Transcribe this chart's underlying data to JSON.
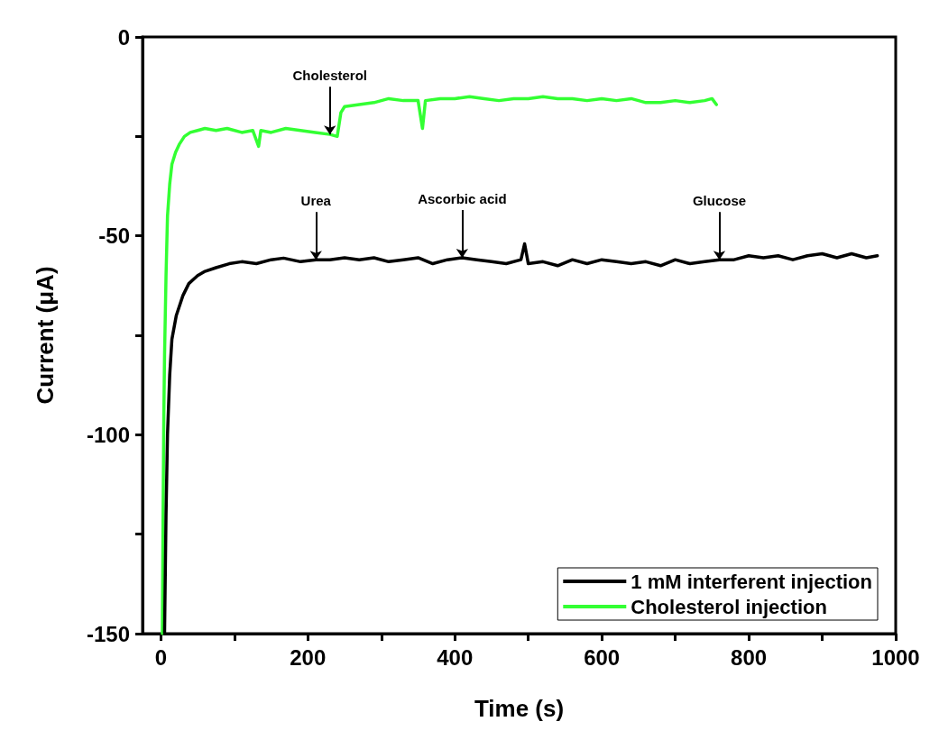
{
  "chart_data": {
    "type": "line",
    "xlabel": "Time (s)",
    "ylabel": "Current (μA)",
    "xlim": [
      -25,
      1000
    ],
    "ylim": [
      -150,
      0
    ],
    "xticks": [
      0,
      {
        "value": 100,
        "label": null
      },
      200,
      {
        "value": 300,
        "label": null
      },
      400,
      {
        "value": 500,
        "label": null
      },
      600,
      {
        "value": 700,
        "label": null
      },
      800,
      {
        "value": 900,
        "label": null
      },
      1000
    ],
    "yticks": [
      -150,
      {
        "value": -125,
        "label": null
      },
      -100,
      {
        "value": -75,
        "label": null
      },
      -50,
      {
        "value": -25,
        "label": null
      },
      0
    ],
    "grid": false,
    "legend": "bottom right",
    "marker": "none",
    "line_style": "solid",
    "series": [
      {
        "name": "1 mM interferent injection",
        "color": "#000000",
        "x": [
          5,
          7,
          9,
          12,
          15,
          21,
          30,
          38,
          50,
          59,
          75,
          93,
          110,
          130,
          150,
          167,
          190,
          211,
          230,
          250,
          270,
          290,
          310,
          330,
          350,
          370,
          390,
          410,
          430,
          450,
          470,
          490,
          495,
          500,
          520,
          540,
          560,
          580,
          600,
          620,
          640,
          660,
          680,
          700,
          720,
          740,
          760,
          780,
          800,
          820,
          840,
          860,
          880,
          900,
          920,
          940,
          960,
          975
        ],
        "values": [
          -150,
          -120,
          -100,
          -85,
          -76,
          -70,
          -65,
          -62,
          -60,
          -59,
          -58,
          -57,
          -56.5,
          -57,
          -56,
          -55.6,
          -56.5,
          -56,
          -56,
          -55.5,
          -56,
          -55.5,
          -56.5,
          -56,
          -55.5,
          -57,
          -56,
          -55.5,
          -56,
          -56.5,
          -57,
          -56,
          -52,
          -57,
          -56.5,
          -57.5,
          -56,
          -57,
          -56,
          -56.5,
          -57,
          -56.5,
          -57.5,
          -56,
          -57,
          -56.5,
          -56,
          -56,
          -55,
          -55.5,
          -55,
          -56,
          -55,
          -54.5,
          -55.5,
          -54.5,
          -55.5,
          -55
        ]
      },
      {
        "name": "Cholesterol injection",
        "color": "#33ff33",
        "x": [
          2,
          3,
          4,
          5,
          7,
          9,
          12,
          15,
          20,
          25,
          32,
          40,
          50,
          60,
          75,
          90,
          110,
          125,
          133,
          136,
          150,
          170,
          190,
          210,
          230,
          240,
          245,
          250,
          270,
          290,
          310,
          330,
          350,
          356,
          360,
          380,
          400,
          420,
          440,
          460,
          480,
          500,
          520,
          540,
          560,
          580,
          600,
          620,
          640,
          660,
          680,
          700,
          720,
          740,
          750,
          756
        ],
        "values": [
          -150,
          -120,
          -95,
          -80,
          -60,
          -45,
          -37,
          -32,
          -29,
          -27,
          -25,
          -24,
          -23.5,
          -23,
          -23.5,
          -23,
          -24,
          -23.5,
          -27.5,
          -23.5,
          -24,
          -23,
          -23.5,
          -24,
          -24.5,
          -25,
          -19,
          -17.5,
          -17,
          -16.5,
          -15.5,
          -16,
          -16,
          -23,
          -16,
          -15.5,
          -15.5,
          -15,
          -15.5,
          -16,
          -15.5,
          -15.5,
          -15,
          -15.5,
          -15.5,
          -16,
          -15.5,
          -16,
          -15.5,
          -16.5,
          -16.5,
          -16,
          -16.5,
          -16,
          -15.5,
          -17
        ]
      }
    ],
    "annotations": [
      {
        "text": "Cholesterol",
        "x": 230,
        "y": -24.5
      },
      {
        "text": "Urea",
        "x": 211,
        "y": -56
      },
      {
        "text": "Ascorbic acid",
        "x": 410,
        "y": -55.5
      },
      {
        "text": "Glucose",
        "x": 760,
        "y": -56
      }
    ]
  }
}
